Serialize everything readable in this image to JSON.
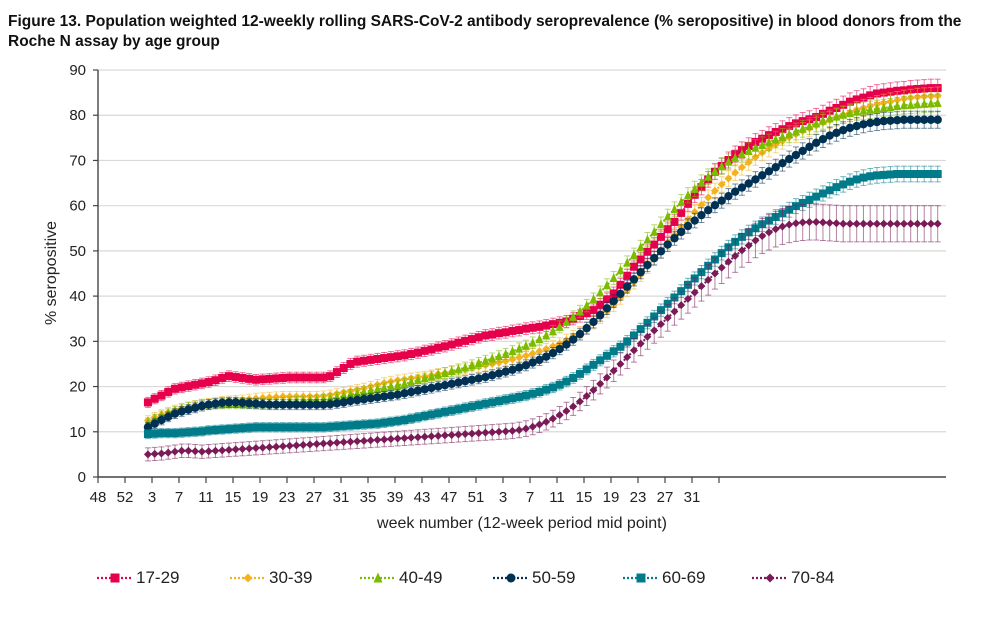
{
  "title": "Figure 13. Population weighted 12-weekly rolling SARS-CoV-2 antibody seroprevalence (% seropositive) in blood donors from the Roche N assay by age group",
  "chart_data": {
    "type": "line",
    "title": "Figure 13. Population weighted 12-weekly rolling SARS-CoV-2 antibody seroprevalence (% seropositive) in blood donors from the Roche N assay by age group",
    "xlabel": "week number (12-week period mid point)",
    "ylabel": "% seropositive",
    "ylim": [
      0,
      90
    ],
    "yticks": [
      "0",
      "10",
      "20",
      "30",
      "40",
      "50",
      "60",
      "70",
      "80",
      "90"
    ],
    "xticks": [
      "48",
      "52",
      "3",
      "7",
      "11",
      "15",
      "19",
      "23",
      "27",
      "31",
      "35",
      "39",
      "43",
      "47",
      "51",
      "3",
      "7",
      "11",
      "15",
      "19",
      "23",
      "27",
      "31",
      ""
    ],
    "x_unit": "weeks since tick 48 (4 weeks per tick)",
    "x_start": 7.4,
    "x_step": 1,
    "error_bars": true,
    "grid": "horizontal",
    "legend_position": "bottom",
    "series": [
      {
        "name": "17-29",
        "color": "#e6004c",
        "marker": "square",
        "values": [
          16.5,
          17.3,
          18.0,
          18.8,
          19.5,
          19.8,
          20.1,
          20.4,
          20.7,
          21.0,
          21.4,
          21.9,
          22.3,
          22.1,
          21.9,
          21.7,
          21.5,
          21.6,
          21.7,
          21.8,
          21.9,
          22.0,
          22.0,
          22.0,
          22.0,
          22.0,
          22.0,
          22.3,
          23.2,
          24.1,
          25.0,
          25.5,
          25.7,
          25.9,
          26.1,
          26.3,
          26.5,
          26.7,
          26.9,
          27.2,
          27.5,
          27.9,
          28.2,
          28.6,
          28.9,
          29.3,
          29.7,
          30.1,
          30.5,
          30.9,
          31.3,
          31.5,
          31.8,
          32.0,
          32.3,
          32.5,
          32.8,
          33.0,
          33.2,
          33.5,
          33.8,
          34.1,
          34.4,
          35.0,
          35.6,
          36.2,
          36.9,
          38.1,
          39.3,
          40.6,
          42.5,
          44.5,
          46.5,
          48.1,
          49.8,
          51.4,
          53.1,
          54.8,
          56.4,
          58.4,
          60.4,
          62.4,
          64.1,
          65.8,
          67.5,
          68.8,
          70.1,
          71.4,
          72.3,
          73.2,
          74.1,
          74.8,
          75.6,
          76.3,
          76.9,
          77.6,
          78.2,
          78.7,
          79.1,
          79.6,
          80.3,
          81.0,
          81.6,
          82.3,
          83.0,
          83.5,
          83.9,
          84.4,
          84.8,
          85.0,
          85.2,
          85.4,
          85.5,
          85.7,
          85.8,
          85.9,
          86.0,
          86.0
        ]
      },
      {
        "name": "30-39",
        "color": "#f5b21f",
        "marker": "diamond",
        "values": [
          12.5,
          13.2,
          13.8,
          14.3,
          14.8,
          15.2,
          15.5,
          15.8,
          16.1,
          16.3,
          16.5,
          16.7,
          16.8,
          16.9,
          17.0,
          17.2,
          17.4,
          17.5,
          17.6,
          17.7,
          17.8,
          17.8,
          17.8,
          17.8,
          17.8,
          17.8,
          17.9,
          18.1,
          18.4,
          18.7,
          19.0,
          19.3,
          19.6,
          20.0,
          20.4,
          20.8,
          21.1,
          21.4,
          21.6,
          21.8,
          22.0,
          22.2,
          22.5,
          22.8,
          23.0,
          23.2,
          23.5,
          23.8,
          24.1,
          24.4,
          24.7,
          25.0,
          25.3,
          25.6,
          26.0,
          26.4,
          26.8,
          27.3,
          27.8,
          28.3,
          28.9,
          29.5,
          30.3,
          31.1,
          32.0,
          33.0,
          34.1,
          35.3,
          36.6,
          38.0,
          39.6,
          41.3,
          43.0,
          44.7,
          46.5,
          48.3,
          50.1,
          51.9,
          53.6,
          55.3,
          57.0,
          58.6,
          60.2,
          61.8,
          63.3,
          64.7,
          66.0,
          67.3,
          68.5,
          69.6,
          70.7,
          71.7,
          72.6,
          73.5,
          74.3,
          75.1,
          75.8,
          76.5,
          77.1,
          77.7,
          78.3,
          78.9,
          79.5,
          80.1,
          80.6,
          81.1,
          81.6,
          82.0,
          82.4,
          82.7,
          83.0,
          83.3,
          83.6,
          83.8,
          84.0,
          84.1,
          84.2,
          84.3
        ]
      },
      {
        "name": "40-49",
        "color": "#7cbb00",
        "marker": "triangle",
        "values": [
          12.0,
          12.8,
          13.5,
          14.0,
          14.5,
          15.0,
          15.4,
          15.7,
          16.0,
          16.1,
          16.2,
          16.2,
          16.2,
          16.2,
          16.2,
          16.2,
          16.2,
          16.2,
          16.3,
          16.4,
          16.5,
          16.6,
          16.7,
          16.8,
          16.9,
          17.0,
          17.1,
          17.3,
          17.6,
          17.9,
          18.2,
          18.5,
          18.8,
          19.1,
          19.4,
          19.7,
          20.0,
          20.3,
          20.6,
          21.0,
          21.4,
          21.8,
          22.2,
          22.6,
          23.0,
          23.4,
          23.8,
          24.2,
          24.7,
          25.2,
          25.7,
          26.2,
          26.7,
          27.2,
          27.8,
          28.4,
          29.0,
          29.7,
          30.5,
          31.3,
          32.2,
          33.2,
          34.3,
          35.4,
          36.6,
          37.9,
          39.3,
          40.8,
          42.4,
          44.0,
          45.7,
          47.4,
          49.1,
          50.8,
          52.5,
          54.2,
          55.9,
          57.6,
          59.2,
          60.8,
          62.3,
          63.7,
          65.1,
          66.4,
          67.6,
          68.7,
          69.7,
          70.6,
          71.4,
          72.1,
          72.8,
          73.4,
          74.0,
          74.6,
          75.2,
          75.8,
          76.4,
          77.0,
          77.6,
          78.2,
          78.8,
          79.3,
          79.7,
          80.1,
          80.5,
          80.8,
          81.0,
          81.2,
          81.4,
          81.6,
          81.8,
          82.0,
          82.2,
          82.3,
          82.4,
          82.5,
          82.6,
          82.7
        ]
      },
      {
        "name": "50-59",
        "color": "#003153",
        "marker": "circle",
        "values": [
          11.0,
          11.8,
          12.6,
          13.3,
          14.0,
          14.5,
          14.9,
          15.3,
          15.7,
          16.0,
          16.2,
          16.4,
          16.5,
          16.5,
          16.4,
          16.3,
          16.2,
          16.1,
          16.0,
          16.0,
          16.0,
          16.0,
          16.0,
          16.0,
          16.0,
          16.0,
          16.0,
          16.1,
          16.3,
          16.5,
          16.8,
          17.0,
          17.2,
          17.4,
          17.6,
          17.8,
          18.0,
          18.2,
          18.5,
          18.8,
          19.1,
          19.4,
          19.7,
          20.0,
          20.3,
          20.6,
          20.9,
          21.2,
          21.5,
          21.8,
          22.1,
          22.5,
          22.9,
          23.3,
          23.7,
          24.2,
          24.7,
          25.3,
          25.9,
          26.6,
          27.4,
          28.3,
          29.3,
          30.4,
          31.6,
          32.9,
          34.3,
          35.8,
          37.3,
          38.9,
          40.5,
          42.1,
          43.7,
          45.3,
          46.9,
          48.4,
          49.9,
          51.4,
          52.8,
          54.2,
          55.5,
          56.7,
          57.9,
          59.0,
          60.1,
          61.1,
          62.1,
          63.1,
          64.0,
          64.9,
          65.8,
          66.7,
          67.6,
          68.5,
          69.4,
          70.3,
          71.2,
          72.1,
          73.0,
          73.9,
          74.7,
          75.5,
          76.1,
          76.7,
          77.2,
          77.6,
          78.0,
          78.3,
          78.5,
          78.7,
          78.8,
          78.9,
          79.0,
          79.0,
          79.0,
          79.0,
          79.0,
          79.0
        ]
      },
      {
        "name": "60-69",
        "color": "#007b8a",
        "marker": "square",
        "values": [
          9.5,
          9.6,
          9.7,
          9.7,
          9.7,
          9.8,
          9.9,
          10.0,
          10.1,
          10.3,
          10.4,
          10.5,
          10.6,
          10.7,
          10.8,
          10.9,
          11.0,
          11.0,
          11.0,
          11.0,
          11.0,
          11.0,
          11.0,
          11.0,
          11.0,
          11.0,
          11.0,
          11.1,
          11.2,
          11.3,
          11.4,
          11.5,
          11.6,
          11.7,
          11.8,
          12.0,
          12.2,
          12.4,
          12.6,
          12.9,
          13.2,
          13.5,
          13.8,
          14.1,
          14.4,
          14.7,
          15.0,
          15.3,
          15.6,
          15.9,
          16.2,
          16.5,
          16.8,
          17.1,
          17.4,
          17.7,
          18.0,
          18.4,
          18.8,
          19.3,
          19.8,
          20.4,
          21.1,
          21.9,
          22.8,
          23.8,
          24.8,
          25.8,
          26.8,
          27.8,
          28.8,
          30.0,
          31.3,
          32.7,
          34.1,
          35.5,
          36.9,
          38.3,
          39.7,
          41.1,
          42.5,
          43.9,
          45.3,
          46.7,
          48.1,
          49.5,
          50.8,
          52.0,
          53.1,
          54.1,
          55.0,
          55.9,
          56.7,
          57.5,
          58.3,
          59.1,
          59.9,
          60.6,
          61.3,
          62.0,
          62.7,
          63.4,
          64.1,
          64.7,
          65.3,
          65.8,
          66.2,
          66.5,
          66.7,
          66.8,
          66.9,
          67.0,
          67.0,
          67.0,
          67.0,
          67.0,
          67.0,
          67.0
        ]
      },
      {
        "name": "70-84",
        "color": "#7a1a57",
        "marker": "diamond",
        "values": [
          5.0,
          5.1,
          5.2,
          5.4,
          5.6,
          5.8,
          5.8,
          5.7,
          5.6,
          5.7,
          5.8,
          5.9,
          6.0,
          6.1,
          6.2,
          6.3,
          6.4,
          6.5,
          6.6,
          6.7,
          6.8,
          6.9,
          7.0,
          7.1,
          7.2,
          7.3,
          7.4,
          7.5,
          7.6,
          7.7,
          7.8,
          7.9,
          8.0,
          8.1,
          8.2,
          8.3,
          8.4,
          8.5,
          8.6,
          8.7,
          8.8,
          8.9,
          9.0,
          9.1,
          9.2,
          9.3,
          9.4,
          9.5,
          9.6,
          9.7,
          9.8,
          9.9,
          10.0,
          10.1,
          10.2,
          10.4,
          10.7,
          11.1,
          11.6,
          12.2,
          12.9,
          13.7,
          14.6,
          15.6,
          16.7,
          17.9,
          19.2,
          20.6,
          22.0,
          23.5,
          25.0,
          26.5,
          28.0,
          29.5,
          31.0,
          32.4,
          33.8,
          35.2,
          36.6,
          38.0,
          39.4,
          40.8,
          42.2,
          43.6,
          45.0,
          46.3,
          47.6,
          48.9,
          50.1,
          51.2,
          52.3,
          53.3,
          54.1,
          54.8,
          55.4,
          55.8,
          56.1,
          56.3,
          56.4,
          56.4,
          56.3,
          56.2,
          56.1,
          56.0,
          56.0,
          56.0,
          56.0,
          56.0,
          56.0,
          56.0,
          56.0,
          56.0,
          56.0,
          56.0,
          56.0,
          56.0,
          56.0,
          56.0
        ]
      }
    ]
  }
}
